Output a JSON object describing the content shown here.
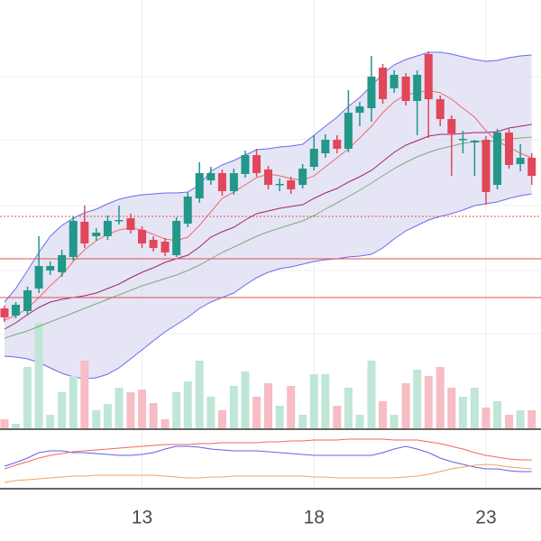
{
  "chart_data": {
    "type": "candlestick",
    "x": [
      9,
      9.33,
      9.67,
      10,
      10.33,
      10.67,
      11,
      11.33,
      11.67,
      12,
      12.33,
      12.67,
      13,
      13.33,
      13.67,
      14,
      14.33,
      14.67,
      15,
      15.33,
      15.67,
      16,
      16.33,
      16.67,
      17,
      17.33,
      17.67,
      18,
      18.33,
      18.67,
      19,
      19.33,
      19.67,
      20,
      20.33,
      20.67,
      21,
      21.33,
      21.67,
      22,
      22.33,
      22.67,
      23,
      23.33,
      23.67,
      24,
      24.33
    ],
    "xlim": [
      8.87,
      24.6
    ],
    "xticks": [
      13,
      18,
      23
    ],
    "ylim": [
      0,
      475
    ],
    "ygrid": [
      390,
      320,
      247,
      175,
      105
    ],
    "open": [
      133,
      125,
      130,
      155,
      175,
      173,
      190,
      229,
      213,
      213,
      230,
      233,
      220,
      209,
      207,
      192,
      227,
      255,
      275,
      283,
      263,
      282,
      303,
      287,
      270,
      275,
      270,
      290,
      305,
      320,
      310,
      350,
      355,
      400,
      377,
      390,
      363,
      415,
      365,
      343,
      320,
      317,
      320,
      270,
      328,
      293,
      300
    ],
    "high": [
      136,
      140,
      157,
      213,
      185,
      198,
      235,
      247,
      222,
      236,
      247,
      238,
      224,
      213,
      211,
      234,
      262,
      295,
      290,
      287,
      288,
      308,
      310,
      291,
      277,
      279,
      293,
      325,
      326,
      325,
      375,
      362,
      413,
      404,
      397,
      394,
      397,
      418,
      369,
      347,
      330,
      320,
      324,
      332,
      332,
      315,
      305
    ],
    "low": [
      118,
      122,
      125,
      150,
      170,
      168,
      186,
      200,
      208,
      209,
      226,
      216,
      200,
      196,
      191,
      190,
      223,
      250,
      270,
      258,
      259,
      278,
      279,
      265,
      263,
      260,
      266,
      286,
      300,
      305,
      306,
      335,
      340,
      360,
      372,
      358,
      325,
      322,
      335,
      280,
      305,
      280,
      248,
      265,
      288,
      285,
      270
    ],
    "close": [
      123,
      137,
      153,
      180,
      180,
      192,
      230,
      205,
      217,
      230,
      231,
      220,
      205,
      200,
      195,
      230,
      257,
      283,
      283,
      263,
      283,
      303,
      283,
      270,
      271,
      265,
      288,
      310,
      320,
      310,
      350,
      357,
      390,
      365,
      392,
      363,
      392,
      365,
      343,
      327,
      321,
      319,
      262,
      328,
      292,
      300,
      280
    ],
    "up_color": "#22978a",
    "down_color": "#e0475a",
    "volume": [
      10,
      5,
      68,
      117,
      15,
      40,
      58,
      75,
      20,
      27,
      45,
      40,
      43,
      28,
      10,
      40,
      52,
      75,
      35,
      20,
      47,
      63,
      35,
      50,
      25,
      47,
      15,
      60,
      60,
      25,
      45,
      15,
      75,
      30,
      15,
      50,
      65,
      58,
      68,
      45,
      35,
      45,
      23,
      30,
      15,
      20,
      20
    ],
    "volume_lim": [
      0,
      400
    ],
    "volume_up_color": "#bfe6d6",
    "volume_down_color": "#f7bcc4",
    "bands": {
      "fill": "#dcdcf2",
      "upper": {
        "color": "#6a6af0",
        "values": [
          140,
          155,
          175,
          195,
          213,
          225,
          233,
          239,
          243,
          249,
          254,
          257,
          259,
          260,
          261,
          261,
          262,
          270,
          285,
          292,
          297,
          303,
          309,
          310,
          312,
          313,
          315,
          325,
          335,
          345,
          357,
          367,
          380,
          393,
          403,
          409,
          413,
          417,
          417,
          415,
          412,
          409,
          407,
          408,
          411,
          413,
          414
        ]
      },
      "lower": {
        "color": "#6a6af0",
        "values": [
          80,
          79,
          77,
          73,
          67,
          61,
          57,
          55,
          56,
          60,
          67,
          77,
          87,
          97,
          107,
          115,
          123,
          133,
          140,
          145,
          150,
          159,
          167,
          173,
          177,
          179,
          182,
          185,
          187,
          188,
          190,
          191,
          193,
          200,
          210,
          219,
          225,
          231,
          235,
          238,
          242,
          247,
          249,
          251,
          255,
          258,
          260
        ]
      }
    },
    "ma": [
      {
        "color": "#a3236f",
        "values": [
          110,
          117,
          126,
          134,
          140,
          143,
          145,
          147,
          150,
          155,
          160,
          167,
          173,
          178,
          184,
          188,
          192,
          201,
          212,
          218,
          223,
          231,
          238,
          241,
          244,
          246,
          248,
          255,
          261,
          266,
          273,
          279,
          286,
          296,
          306,
          314,
          319,
          324,
          326,
          326,
          327,
          328,
          328,
          329,
          333,
          335,
          337
        ]
      },
      {
        "color": "#ee6a6a",
        "values": [
          120,
          125,
          133,
          145,
          158,
          170,
          185,
          198,
          208,
          215,
          220,
          222,
          220,
          215,
          210,
          208,
          212,
          225,
          240,
          255,
          262,
          270,
          278,
          282,
          280,
          277,
          275,
          280,
          290,
          300,
          310,
          322,
          335,
          350,
          362,
          370,
          372,
          375,
          372,
          365,
          355,
          345,
          330,
          318,
          312,
          305,
          300
        ]
      },
      {
        "color": "#79ad79",
        "values": [
          100,
          104,
          108,
          113,
          118,
          123,
          128,
          133,
          138,
          143,
          148,
          153,
          158,
          162,
          166,
          170,
          175,
          181,
          188,
          195,
          201,
          207,
          213,
          218,
          222,
          226,
          230,
          236,
          243,
          250,
          257,
          264,
          272,
          280,
          288,
          295,
          301,
          306,
          310,
          313,
          316,
          318,
          318,
          319,
          321,
          322,
          323
        ]
      }
    ],
    "levels": [
      {
        "value": 235,
        "color": "#e05050",
        "style": "dotted"
      },
      {
        "value": 188,
        "color": "#e05050",
        "style": "solid"
      },
      {
        "value": 145,
        "color": "#e05050",
        "style": "solid"
      }
    ],
    "indicator": {
      "ylim": [
        0,
        62
      ],
      "series": [
        {
          "color": "#6060e6",
          "values": [
            23,
            27,
            32,
            38,
            40,
            40,
            38,
            38,
            37,
            36,
            35,
            35,
            36,
            38,
            42,
            45,
            45,
            44,
            42,
            41,
            40,
            40,
            40,
            39,
            38,
            37,
            36,
            35,
            35,
            35,
            35,
            35,
            35,
            38,
            42,
            45,
            42,
            38,
            32,
            28,
            25,
            22,
            20,
            20,
            18,
            17,
            17
          ]
        },
        {
          "color": "#f06666",
          "values": [
            20,
            24,
            28,
            32,
            35,
            37,
            39,
            40,
            41,
            42,
            43,
            44,
            45,
            46,
            47,
            47,
            47,
            48,
            48,
            49,
            49,
            49,
            49,
            50,
            50,
            51,
            51,
            52,
            52,
            52,
            53,
            53,
            53,
            53,
            52,
            52,
            52,
            50,
            48,
            45,
            42,
            38,
            35,
            33,
            31,
            30,
            30
          ]
        },
        {
          "color": "#f5a060",
          "values": [
            5,
            7,
            8,
            9,
            10,
            11,
            12,
            12,
            13,
            13,
            13,
            13,
            13,
            13,
            12,
            11,
            10,
            10,
            11,
            11,
            12,
            12,
            12,
            12,
            12,
            12,
            12,
            11,
            11,
            10,
            10,
            10,
            10,
            10,
            10,
            11,
            12,
            14,
            17,
            20,
            22,
            24,
            25,
            24,
            22,
            21,
            20
          ]
        }
      ]
    },
    "grid": true
  }
}
